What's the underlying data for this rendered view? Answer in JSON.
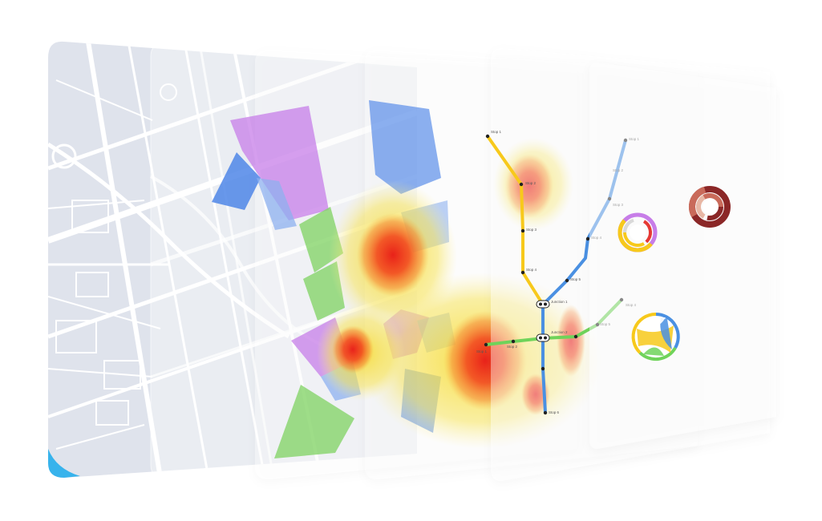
{
  "colors": {
    "map_background": "#dfe3ec",
    "street": "#ffffff",
    "accent_edge": "#37b3ec",
    "region_purple": "#c77de8",
    "region_blue": "#4f86e8",
    "region_blue_light": "#8eb0ef",
    "region_green": "#86d46a",
    "line_yellow": "#f7c91b",
    "line_blue": "#4a90e2",
    "line_green": "#6fd35a",
    "donut_ring_1": "#f7c91b",
    "donut_ring_2": "#c77de8",
    "donut_ring_3": "#e53935",
    "sunburst_1": "#8b2727",
    "sunburst_2": "#c96a5a",
    "sunburst_3": "#e8b7a5",
    "chord_yellow": "#f7c91b",
    "chord_blue": "#4a90e2",
    "chord_green": "#6fd35a"
  },
  "layers": [
    {
      "id": "base-map"
    },
    {
      "id": "regions"
    },
    {
      "id": "heatmap"
    },
    {
      "id": "transit-lines"
    },
    {
      "id": "charts"
    },
    {
      "id": "blank"
    }
  ],
  "transit": {
    "stops": [
      {
        "label": "Stop 1",
        "line": "yellow"
      },
      {
        "label": "Stop 2",
        "line": "yellow"
      },
      {
        "label": "Stop 3",
        "line": "yellow"
      },
      {
        "label": "Stop 4",
        "line": "yellow"
      },
      {
        "label": "Junction 1",
        "line": "yellow"
      },
      {
        "label": "Stop 1",
        "line": "blue"
      },
      {
        "label": "Stop 2",
        "line": "blue"
      },
      {
        "label": "Stop 3",
        "line": "blue"
      },
      {
        "label": "Stop 4",
        "line": "blue"
      },
      {
        "label": "Stop 5",
        "line": "blue"
      },
      {
        "label": "Junction 2",
        "line": "blue"
      },
      {
        "label": "Stop 6",
        "line": "blue"
      },
      {
        "label": "Stop 1",
        "line": "green"
      },
      {
        "label": "Stop 2",
        "line": "green"
      },
      {
        "label": "Stop 4",
        "line": "green"
      },
      {
        "label": "Stop 5",
        "line": "green"
      }
    ]
  }
}
